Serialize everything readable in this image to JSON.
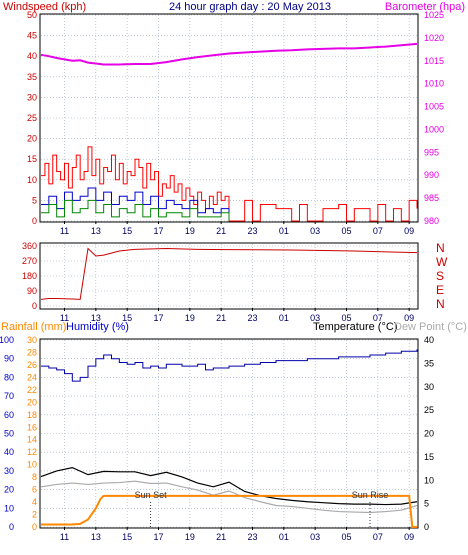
{
  "header": {
    "left_label": "Windspeed (kph)",
    "center_title": "24 hour graph day : 20 May 2013",
    "right_label": "Barometer (hpa)"
  },
  "colors": {
    "wind_gust": "#ff0000",
    "wind_avg": "#0000cc",
    "wind_low": "#008800",
    "barometer": "#e600e6",
    "direction": "#cc0000",
    "humidity": "#0000aa",
    "temperature": "#000000",
    "dewpoint": "#aaaaaa",
    "rainfall": "#ff8800",
    "grid": "#99aabb"
  },
  "chart_data": [
    {
      "id": "wind-barometer",
      "type": "line",
      "title": "24 hour graph day : 20 May 2013",
      "x_tick_labels": [
        "11",
        "13",
        "15",
        "17",
        "19",
        "21",
        "23",
        "01",
        "03",
        "05",
        "07",
        "09"
      ],
      "y_left": {
        "label": "Windspeed (kph)",
        "range": [
          0,
          50
        ],
        "ticks": [
          0,
          5,
          10,
          15,
          20,
          25,
          30,
          35,
          40,
          45,
          50
        ]
      },
      "y_right": {
        "label": "Barometer (hpa)",
        "range": [
          980,
          1025
        ],
        "ticks": [
          980,
          985,
          990,
          995,
          1000,
          1005,
          1010,
          1015,
          1020,
          1025
        ]
      },
      "series": [
        {
          "name": "Barometer (hpa)",
          "axis": "right",
          "x": [
            0,
            0.5,
            1,
            1.5,
            2,
            2.5,
            3,
            3.5,
            4,
            5,
            6,
            7,
            8,
            9,
            10,
            11,
            12,
            13,
            14,
            15,
            16,
            17,
            18,
            19,
            20,
            21,
            22,
            23,
            24
          ],
          "values": [
            1016.3,
            1016,
            1015.6,
            1015.3,
            1015,
            1015.1,
            1014.6,
            1014.4,
            1014.2,
            1014.2,
            1014.3,
            1014.3,
            1014.7,
            1015.3,
            1015.8,
            1016.2,
            1016.6,
            1016.8,
            1017,
            1017.2,
            1017.3,
            1017.5,
            1017.6,
            1017.7,
            1017.7,
            1017.9,
            1018.1,
            1018.4,
            1018.7
          ]
        },
        {
          "name": "Wind gust (kph)",
          "axis": "left",
          "x": [
            0,
            0.25,
            0.5,
            0.75,
            1,
            1.25,
            1.5,
            1.75,
            2,
            2.25,
            2.5,
            2.75,
            3,
            3.25,
            3.5,
            3.75,
            4,
            4.25,
            4.5,
            4.75,
            5,
            5.25,
            5.5,
            5.75,
            6,
            6.25,
            6.5,
            6.75,
            7,
            7.25,
            7.5,
            7.75,
            8,
            8.25,
            8.5,
            8.75,
            9,
            9.25,
            9.5,
            9.75,
            10,
            10.25,
            10.5,
            10.75,
            11,
            11.25,
            11.5,
            11.75,
            12,
            13,
            13.5,
            14,
            15,
            16,
            16.5,
            17,
            18,
            19,
            19.5,
            20,
            21,
            21.5,
            22,
            22.5,
            23,
            23.5,
            24
          ],
          "values": [
            11,
            14,
            9,
            16,
            12,
            10,
            14,
            8,
            13,
            16,
            10,
            12,
            18,
            11,
            15,
            9,
            13,
            12,
            16,
            10,
            14,
            9,
            12,
            11,
            15,
            13,
            8,
            14,
            10,
            12,
            6,
            9,
            8,
            11,
            7,
            9,
            5,
            8,
            6,
            4,
            7,
            5,
            3,
            6,
            4,
            7,
            5,
            6,
            0,
            5,
            0,
            4,
            3,
            0,
            4,
            0,
            3,
            4,
            0,
            3,
            0,
            4,
            0,
            3,
            0,
            5,
            3
          ]
        },
        {
          "name": "Wind average (kph)",
          "axis": "left",
          "x": [
            0,
            0.5,
            1,
            1.5,
            2,
            2.5,
            3,
            3.5,
            4,
            4.5,
            5,
            5.5,
            6,
            6.5,
            7,
            7.5,
            8,
            8.5,
            9,
            9.5,
            10,
            10.5,
            11,
            11.5,
            12
          ],
          "values": [
            4,
            6,
            3,
            7,
            5,
            6,
            8,
            5,
            7,
            4,
            6,
            5,
            7,
            4,
            6,
            3,
            5,
            4,
            3,
            5,
            2,
            3,
            2,
            3,
            1
          ]
        },
        {
          "name": "Wind low (kph)",
          "axis": "left",
          "x": [
            0,
            0.5,
            1,
            1.5,
            2,
            2.5,
            3,
            3.5,
            4,
            4.5,
            5,
            5.5,
            6,
            6.5,
            7,
            7.5,
            8,
            8.5,
            9,
            9.5,
            10,
            10.5,
            11,
            11.5,
            12
          ],
          "values": [
            2,
            4,
            1,
            5,
            2,
            3,
            5,
            2,
            4,
            1,
            3,
            2,
            4,
            1,
            3,
            1,
            2,
            2,
            1,
            3,
            1,
            1,
            1,
            2,
            0
          ]
        }
      ]
    },
    {
      "id": "wind-direction",
      "type": "line",
      "x_tick_labels": [
        "11",
        "13",
        "15",
        "17",
        "19",
        "21",
        "23",
        "01",
        "03",
        "05",
        "07",
        "09"
      ],
      "y_left": {
        "range": [
          0,
          360
        ],
        "ticks": [
          0,
          90,
          180,
          270,
          360
        ]
      },
      "y_right_labels": [
        "N",
        "W",
        "S",
        "E",
        "N"
      ],
      "series": [
        {
          "name": "Wind direction (deg)",
          "x": [
            0,
            0.5,
            1,
            2,
            2.5,
            3,
            3.5,
            4,
            5,
            6,
            8,
            10,
            12,
            16,
            20,
            24
          ],
          "values": [
            40,
            45,
            45,
            42,
            40,
            345,
            300,
            305,
            330,
            340,
            345,
            340,
            338,
            336,
            330,
            320
          ]
        }
      ]
    },
    {
      "id": "rain-humidity-temperature",
      "type": "line",
      "header_labels": {
        "rainfall": "Rainfall (mm)",
        "humidity": "Humidity (%)",
        "temperature": "Temperature (°C)",
        "dewpoint": "Dew Point (°C)"
      },
      "x_tick_labels": [
        "11",
        "13",
        "15",
        "17",
        "19",
        "21",
        "23",
        "01",
        "03",
        "05",
        "07",
        "09"
      ],
      "y_humidity": {
        "range": [
          0,
          100
        ],
        "ticks": [
          0,
          10,
          20,
          30,
          40,
          50,
          60,
          70,
          80,
          90,
          100
        ]
      },
      "y_rainfall": {
        "range": [
          0,
          30
        ],
        "ticks": [
          0,
          2,
          4,
          6,
          8,
          10,
          12,
          14,
          16,
          18,
          20,
          22,
          24,
          26,
          28,
          30
        ]
      },
      "y_temperature": {
        "range": [
          0,
          40
        ],
        "ticks": [
          0,
          5,
          10,
          15,
          20,
          25,
          30,
          35,
          40
        ]
      },
      "annotations": [
        {
          "text": "Sun Set",
          "x": 7.0
        },
        {
          "text": "Sun Rise",
          "x": 21.0
        }
      ],
      "series": [
        {
          "name": "Humidity (%)",
          "axis": "humidity",
          "x": [
            0,
            0.5,
            1,
            1.5,
            2,
            2.5,
            3,
            3.5,
            4,
            4.5,
            5,
            5.5,
            6,
            6.5,
            7,
            7.5,
            8,
            9,
            10,
            10.5,
            11,
            12,
            13,
            14,
            15,
            16,
            17,
            18,
            19,
            20,
            21,
            22,
            23,
            24
          ],
          "values": [
            86,
            85,
            84,
            82,
            78,
            80,
            86,
            90,
            92,
            90,
            88,
            87,
            88,
            85,
            86,
            85,
            87,
            86,
            87,
            84,
            85,
            86,
            87,
            88,
            89,
            89,
            90,
            90,
            91,
            91,
            92,
            93,
            94,
            95
          ]
        },
        {
          "name": "Temperature (°C)",
          "axis": "temperature",
          "x": [
            0,
            1,
            2,
            3,
            4,
            5,
            6,
            7,
            8,
            9,
            10,
            11,
            12,
            13,
            14,
            15,
            16,
            17,
            18,
            19,
            20,
            21,
            22,
            23,
            24
          ],
          "values": [
            10.8,
            12,
            12.7,
            11.2,
            11.9,
            11.8,
            11.8,
            11,
            11.7,
            10.7,
            9.4,
            8.6,
            9.6,
            7.6,
            6.7,
            6.1,
            5.7,
            5.4,
            5.2,
            5,
            4.9,
            4.9,
            4.8,
            4.9,
            5.4
          ]
        },
        {
          "name": "Dew Point (°C)",
          "axis": "temperature",
          "x": [
            0,
            1,
            2,
            3,
            4,
            5,
            6,
            7,
            8,
            9,
            10,
            11,
            12,
            13,
            14,
            15,
            16,
            17,
            18,
            19,
            20,
            21,
            22,
            23,
            24
          ],
          "values": [
            8.6,
            9.1,
            9.4,
            9.1,
            9.4,
            9.5,
            9.8,
            9.3,
            9.4,
            8.6,
            7.9,
            6.8,
            7.7,
            6.3,
            5.4,
            4.6,
            4.4,
            4,
            3.6,
            3.3,
            3.2,
            3.1,
            3.3,
            3.6,
            4.6
          ]
        },
        {
          "name": "Rainfall (mm)",
          "axis": "rainfall",
          "x": [
            0,
            1,
            2,
            2.5,
            3,
            3.5,
            3.8,
            4,
            6,
            8,
            10,
            12,
            14,
            16,
            18,
            20,
            22,
            23.5,
            23.7,
            24
          ],
          "values": [
            0.4,
            0.4,
            0.4,
            0.5,
            1.2,
            3,
            4.5,
            5,
            5,
            5,
            5,
            5,
            5,
            5,
            5,
            5,
            5,
            5,
            0,
            0
          ]
        }
      ]
    }
  ]
}
